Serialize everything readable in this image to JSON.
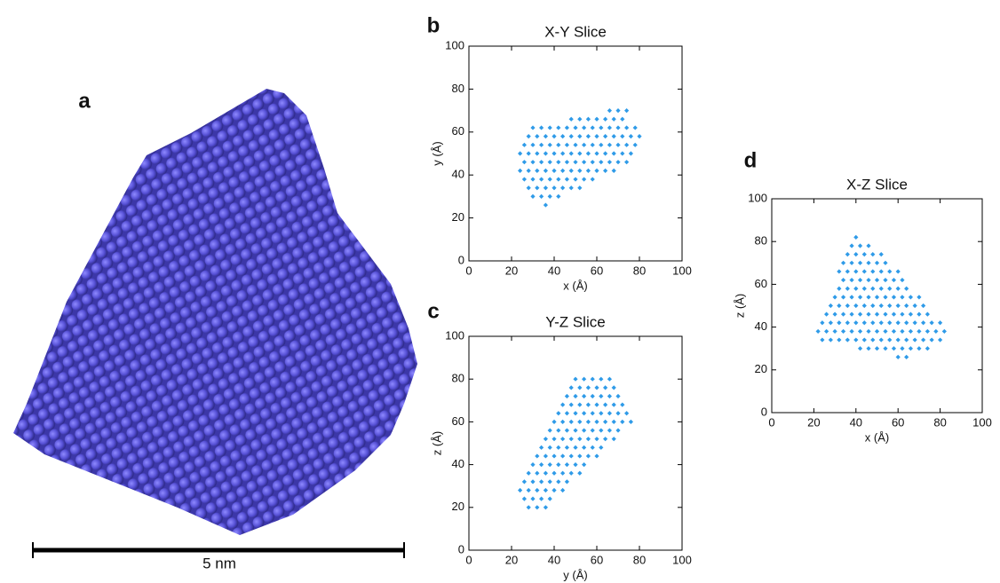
{
  "panel_a": {
    "label": "a",
    "scale_bar": "5 nm"
  },
  "chart_data": [
    {
      "type": "scatter",
      "panel": "b",
      "title": "X-Y Slice",
      "x_label": "x (Å)",
      "y_label": "y (Å)",
      "color": "#2f9be8",
      "xlim": [
        0,
        100
      ],
      "ylim": [
        0,
        100
      ],
      "xticks": [
        0,
        20,
        40,
        60,
        80,
        100
      ],
      "yticks": [
        0,
        20,
        40,
        60,
        80,
        100
      ],
      "x": [
        36,
        30,
        34,
        38,
        42,
        28,
        32,
        36,
        40,
        44,
        48,
        52,
        26,
        30,
        34,
        38,
        42,
        46,
        50,
        54,
        58,
        24,
        28,
        32,
        36,
        40,
        44,
        48,
        52,
        56,
        60,
        64,
        68,
        26,
        30,
        34,
        38,
        42,
        46,
        50,
        54,
        58,
        62,
        66,
        70,
        74,
        24,
        28,
        32,
        36,
        40,
        44,
        48,
        52,
        56,
        60,
        64,
        68,
        72,
        76,
        26,
        30,
        34,
        38,
        42,
        46,
        50,
        54,
        58,
        62,
        66,
        70,
        74,
        78,
        28,
        32,
        36,
        40,
        44,
        48,
        52,
        56,
        60,
        64,
        68,
        72,
        76,
        80,
        30,
        34,
        38,
        42,
        46,
        50,
        54,
        58,
        62,
        66,
        70,
        74,
        78,
        48,
        52,
        56,
        60,
        64,
        68,
        72,
        66,
        70,
        74
      ],
      "values": [
        26,
        30,
        30,
        30,
        30,
        34,
        34,
        34,
        34,
        34,
        34,
        34,
        38,
        38,
        38,
        38,
        38,
        38,
        38,
        38,
        38,
        42,
        42,
        42,
        42,
        42,
        42,
        42,
        42,
        42,
        42,
        42,
        42,
        46,
        46,
        46,
        46,
        46,
        46,
        46,
        46,
        46,
        46,
        46,
        46,
        46,
        50,
        50,
        50,
        50,
        50,
        50,
        50,
        50,
        50,
        50,
        50,
        50,
        50,
        50,
        54,
        54,
        54,
        54,
        54,
        54,
        54,
        54,
        54,
        54,
        54,
        54,
        54,
        54,
        58,
        58,
        58,
        58,
        58,
        58,
        58,
        58,
        58,
        58,
        58,
        58,
        58,
        58,
        62,
        62,
        62,
        62,
        62,
        62,
        62,
        62,
        62,
        62,
        62,
        62,
        62,
        66,
        66,
        66,
        66,
        66,
        66,
        66,
        70,
        70,
        70
      ]
    },
    {
      "type": "scatter",
      "panel": "c",
      "title": "Y-Z Slice",
      "x_label": "y (Å)",
      "y_label": "z (Å)",
      "color": "#2f9be8",
      "xlim": [
        0,
        100
      ],
      "ylim": [
        0,
        100
      ],
      "xticks": [
        0,
        20,
        40,
        60,
        80,
        100
      ],
      "yticks": [
        0,
        20,
        40,
        60,
        80,
        100
      ],
      "x": [
        28,
        32,
        36,
        26,
        30,
        34,
        38,
        24,
        28,
        32,
        36,
        40,
        44,
        26,
        30,
        34,
        38,
        42,
        46,
        28,
        32,
        36,
        40,
        44,
        48,
        52,
        30,
        34,
        38,
        42,
        46,
        50,
        54,
        32,
        36,
        40,
        44,
        48,
        52,
        56,
        60,
        34,
        38,
        42,
        46,
        50,
        54,
        58,
        62,
        36,
        40,
        44,
        48,
        52,
        56,
        60,
        64,
        68,
        38,
        42,
        46,
        50,
        54,
        58,
        62,
        66,
        70,
        40,
        44,
        48,
        52,
        56,
        60,
        64,
        68,
        72,
        76,
        42,
        46,
        50,
        54,
        58,
        62,
        66,
        70,
        74,
        44,
        48,
        52,
        56,
        60,
        64,
        68,
        72,
        46,
        50,
        54,
        58,
        62,
        66,
        70,
        48,
        52,
        56,
        60,
        64,
        68,
        50,
        54,
        58,
        62,
        66
      ],
      "values": [
        20,
        20,
        20,
        24,
        24,
        24,
        24,
        28,
        28,
        28,
        28,
        28,
        28,
        32,
        32,
        32,
        32,
        32,
        32,
        36,
        36,
        36,
        36,
        36,
        36,
        36,
        40,
        40,
        40,
        40,
        40,
        40,
        40,
        44,
        44,
        44,
        44,
        44,
        44,
        44,
        44,
        48,
        48,
        48,
        48,
        48,
        48,
        48,
        48,
        52,
        52,
        52,
        52,
        52,
        52,
        52,
        52,
        52,
        56,
        56,
        56,
        56,
        56,
        56,
        56,
        56,
        56,
        60,
        60,
        60,
        60,
        60,
        60,
        60,
        60,
        60,
        60,
        64,
        64,
        64,
        64,
        64,
        64,
        64,
        64,
        64,
        68,
        68,
        68,
        68,
        68,
        68,
        68,
        68,
        72,
        72,
        72,
        72,
        72,
        72,
        72,
        76,
        76,
        76,
        76,
        76,
        76,
        80,
        80,
        80,
        80,
        80
      ]
    },
    {
      "type": "scatter",
      "panel": "d",
      "title": "X-Z Slice",
      "x_label": "x (Å)",
      "y_label": "z (Å)",
      "color": "#2f9be8",
      "xlim": [
        0,
        100
      ],
      "ylim": [
        0,
        100
      ],
      "xticks": [
        0,
        20,
        40,
        60,
        80,
        100
      ],
      "yticks": [
        0,
        20,
        40,
        60,
        80,
        100
      ],
      "x": [
        60,
        64,
        42,
        46,
        50,
        54,
        58,
        62,
        66,
        70,
        74,
        24,
        28,
        32,
        36,
        40,
        44,
        48,
        52,
        56,
        60,
        64,
        68,
        72,
        76,
        80,
        22,
        26,
        30,
        34,
        38,
        42,
        46,
        50,
        54,
        58,
        62,
        66,
        70,
        74,
        78,
        82,
        24,
        28,
        32,
        36,
        40,
        44,
        48,
        52,
        56,
        60,
        64,
        68,
        72,
        76,
        80,
        26,
        30,
        34,
        38,
        42,
        46,
        50,
        54,
        58,
        62,
        66,
        70,
        74,
        28,
        32,
        36,
        40,
        44,
        48,
        52,
        56,
        60,
        64,
        68,
        72,
        30,
        34,
        38,
        42,
        46,
        50,
        54,
        58,
        62,
        66,
        70,
        32,
        36,
        40,
        44,
        48,
        52,
        56,
        60,
        64,
        34,
        38,
        42,
        46,
        50,
        54,
        58,
        62,
        32,
        36,
        40,
        44,
        48,
        52,
        56,
        60,
        34,
        38,
        42,
        46,
        50,
        54,
        36,
        40,
        44,
        48,
        52,
        38,
        42,
        46,
        40
      ],
      "values": [
        26,
        26,
        30,
        30,
        30,
        30,
        30,
        30,
        30,
        30,
        30,
        34,
        34,
        34,
        34,
        34,
        34,
        34,
        34,
        34,
        34,
        34,
        34,
        34,
        34,
        34,
        38,
        38,
        38,
        38,
        38,
        38,
        38,
        38,
        38,
        38,
        38,
        38,
        38,
        38,
        38,
        38,
        42,
        42,
        42,
        42,
        42,
        42,
        42,
        42,
        42,
        42,
        42,
        42,
        42,
        42,
        42,
        46,
        46,
        46,
        46,
        46,
        46,
        46,
        46,
        46,
        46,
        46,
        46,
        46,
        50,
        50,
        50,
        50,
        50,
        50,
        50,
        50,
        50,
        50,
        50,
        50,
        54,
        54,
        54,
        54,
        54,
        54,
        54,
        54,
        54,
        54,
        54,
        58,
        58,
        58,
        58,
        58,
        58,
        58,
        58,
        58,
        62,
        62,
        62,
        62,
        62,
        62,
        62,
        62,
        66,
        66,
        66,
        66,
        66,
        66,
        66,
        66,
        70,
        70,
        70,
        70,
        70,
        70,
        74,
        74,
        74,
        74,
        74,
        78,
        78,
        78,
        82
      ]
    }
  ]
}
